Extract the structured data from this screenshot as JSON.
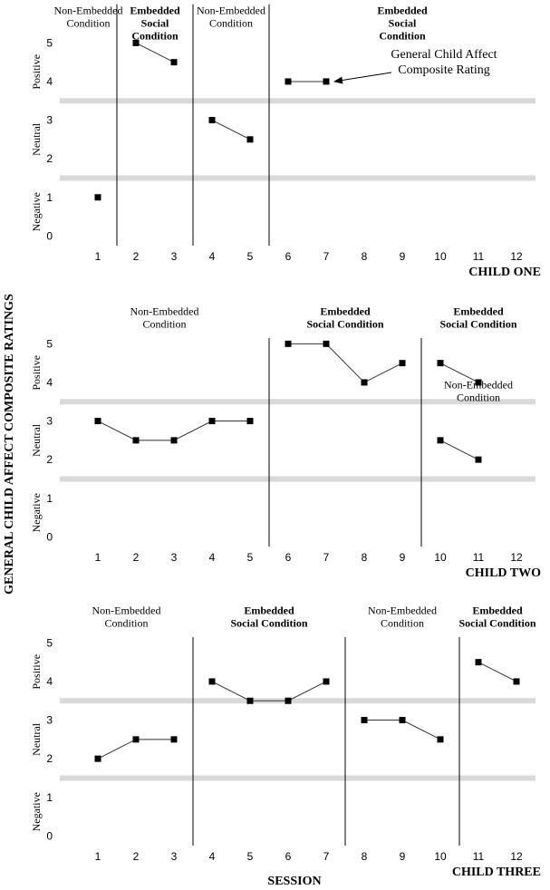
{
  "y_label": "GENERAL CHILD AFFECT COMPOSITE RATINGS",
  "x_label": "SESSION",
  "chart_data": [
    {
      "type": "phase",
      "title": "CHILD ONE",
      "xlim": [
        0,
        12.5
      ],
      "ylim": [
        -0.25,
        6
      ],
      "xticks": [
        1,
        2,
        3,
        4,
        5,
        6,
        7,
        8,
        9,
        10,
        11,
        12
      ],
      "yticks": [
        0,
        1,
        2,
        3,
        4,
        5
      ],
      "zone_labels": [
        "Negative",
        "Neutral",
        "Positive"
      ],
      "reference_lines": [
        1.5,
        3.5
      ],
      "phase_lines": [
        1.5,
        3.5,
        5.5
      ],
      "annotation": [
        "General Child Affect",
        "Composite Rating"
      ],
      "phases": [
        {
          "label": [
            "Non-Embedded",
            "Condition"
          ],
          "bold": false,
          "x": [
            1
          ],
          "values": [
            1
          ]
        },
        {
          "label": [
            "Embedded",
            "Social",
            "Condition"
          ],
          "bold": true,
          "x": [
            2,
            3
          ],
          "values": [
            5,
            4.5
          ]
        },
        {
          "label": [
            "Non-Embedded",
            "Condition"
          ],
          "bold": false,
          "x": [
            4,
            5
          ],
          "values": [
            3,
            2.5
          ]
        },
        {
          "label": [
            "Embedded",
            "Social",
            "Condition"
          ],
          "bold": true,
          "x": [
            6,
            7
          ],
          "values": [
            4,
            4
          ]
        }
      ]
    },
    {
      "type": "phase",
      "title": "CHILD TWO",
      "xlim": [
        0,
        12.5
      ],
      "ylim": [
        -0.25,
        5.15
      ],
      "xticks": [
        1,
        2,
        3,
        4,
        5,
        6,
        7,
        8,
        9,
        10,
        11,
        12
      ],
      "yticks": [
        0,
        1,
        2,
        3,
        4,
        5
      ],
      "zone_labels": [
        "Negative",
        "Neutral",
        "Positive"
      ],
      "reference_lines": [
        1.5,
        3.5
      ],
      "phase_lines": [
        5.5,
        9.5
      ],
      "phases": [
        {
          "label": [
            "Non-Embedded",
            "Condition"
          ],
          "bold": false,
          "x": [
            1,
            2,
            3,
            4,
            5
          ],
          "values": [
            3,
            2.5,
            2.5,
            3,
            3
          ]
        },
        {
          "label": [
            "Embedded",
            "Social Condition"
          ],
          "bold": true,
          "x": [
            6,
            7,
            8,
            9
          ],
          "values": [
            5,
            5,
            4,
            4.5
          ]
        },
        {
          "label": [
            "Embedded",
            "Social Condition"
          ],
          "bold": true,
          "x": [
            10,
            11
          ],
          "values": [
            4.5,
            4
          ]
        },
        {
          "label": [
            "Non-Embedded",
            "Condition"
          ],
          "bold": false,
          "x": [
            10,
            11
          ],
          "values": [
            2.5,
            2
          ]
        }
      ]
    },
    {
      "type": "phase",
      "title": "CHILD THREE",
      "xlim": [
        0,
        12.5
      ],
      "ylim": [
        -0.25,
        5.15
      ],
      "xticks": [
        1,
        2,
        3,
        4,
        5,
        6,
        7,
        8,
        9,
        10,
        11,
        12
      ],
      "yticks": [
        0,
        1,
        2,
        3,
        4,
        5
      ],
      "zone_labels": [
        "Negative",
        "Neutral",
        "Positive"
      ],
      "reference_lines": [
        1.5,
        3.5
      ],
      "phase_lines": [
        3.5,
        7.5,
        10.5
      ],
      "phases": [
        {
          "label": [
            "Non-Embedded",
            "Condition"
          ],
          "bold": false,
          "x": [
            1,
            2,
            3
          ],
          "values": [
            2,
            2.5,
            2.5
          ]
        },
        {
          "label": [
            "Embedded",
            "Social Condition"
          ],
          "bold": true,
          "x": [
            4,
            5,
            6,
            7
          ],
          "values": [
            4,
            3.5,
            3.5,
            4
          ]
        },
        {
          "label": [
            "Non-Embedded",
            "Condition"
          ],
          "bold": false,
          "x": [
            8,
            9,
            10
          ],
          "values": [
            3,
            3,
            2.5
          ]
        },
        {
          "label": [
            "Embedded",
            "Social Condition"
          ],
          "bold": true,
          "x": [
            11,
            12
          ],
          "values": [
            4.5,
            4
          ]
        }
      ]
    }
  ]
}
